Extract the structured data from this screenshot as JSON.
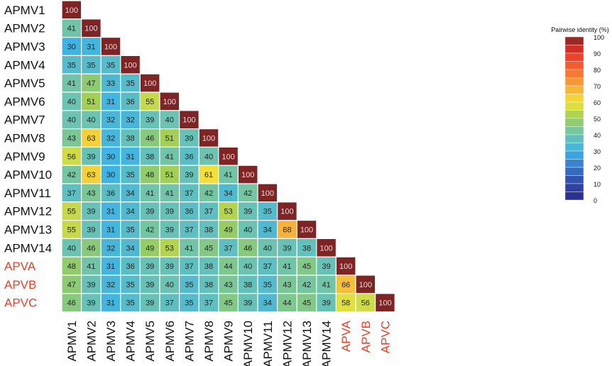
{
  "chart_data": {
    "type": "heatmap",
    "title": "",
    "legend_title": "Pairwise identity (%)",
    "legend_placement": "top-right",
    "legend_ticks": [
      100,
      90,
      80,
      70,
      60,
      50,
      40,
      30,
      20,
      10,
      0
    ],
    "row_labels": [
      "APMV1",
      "APMV2",
      "APMV3",
      "APMV4",
      "APMV5",
      "APMV6",
      "APMV7",
      "APMV8",
      "APMV9",
      "APMV10",
      "APMV11",
      "APMV12",
      "APMV13",
      "APMV14",
      "APVA",
      "APVB",
      "APVC"
    ],
    "col_labels": [
      "APMV1",
      "APMV2",
      "APMV3",
      "APMV4",
      "APMV5",
      "APMV6",
      "APMV7",
      "APMV8",
      "APMV9",
      "APMV10",
      "APMV11",
      "APMV12",
      "APMV13",
      "APMV14",
      "APVA",
      "APVB",
      "APVC"
    ],
    "highlight_labels": [
      "APVA",
      "APVB",
      "APVC"
    ],
    "label_color": "#111111",
    "highlight_color": "#e8402a",
    "matrix": [
      [
        100
      ],
      [
        41,
        100
      ],
      [
        30,
        31,
        100
      ],
      [
        35,
        35,
        35,
        100
      ],
      [
        41,
        47,
        33,
        35,
        100
      ],
      [
        40,
        51,
        31,
        36,
        55,
        100
      ],
      [
        40,
        40,
        32,
        32,
        39,
        40,
        100
      ],
      [
        43,
        63,
        32,
        38,
        46,
        51,
        39,
        100
      ],
      [
        56,
        39,
        30,
        31,
        38,
        41,
        36,
        40,
        100
      ],
      [
        42,
        63,
        30,
        35,
        48,
        51,
        39,
        61,
        41,
        100
      ],
      [
        37,
        43,
        36,
        34,
        41,
        41,
        37,
        42,
        34,
        42,
        100
      ],
      [
        55,
        39,
        31,
        34,
        39,
        39,
        36,
        37,
        53,
        39,
        35,
        100
      ],
      [
        55,
        39,
        31,
        35,
        42,
        39,
        37,
        38,
        49,
        40,
        34,
        68,
        100
      ],
      [
        40,
        46,
        32,
        34,
        49,
        53,
        41,
        45,
        37,
        46,
        40,
        39,
        38,
        100
      ],
      [
        48,
        41,
        31,
        36,
        39,
        39,
        37,
        38,
        44,
        40,
        37,
        41,
        45,
        39,
        100
      ],
      [
        47,
        39,
        32,
        35,
        39,
        40,
        35,
        38,
        43,
        38,
        35,
        43,
        42,
        41,
        66,
        100
      ],
      [
        46,
        39,
        31,
        35,
        39,
        37,
        35,
        37,
        45,
        39,
        34,
        44,
        45,
        39,
        58,
        56,
        100
      ]
    ]
  }
}
